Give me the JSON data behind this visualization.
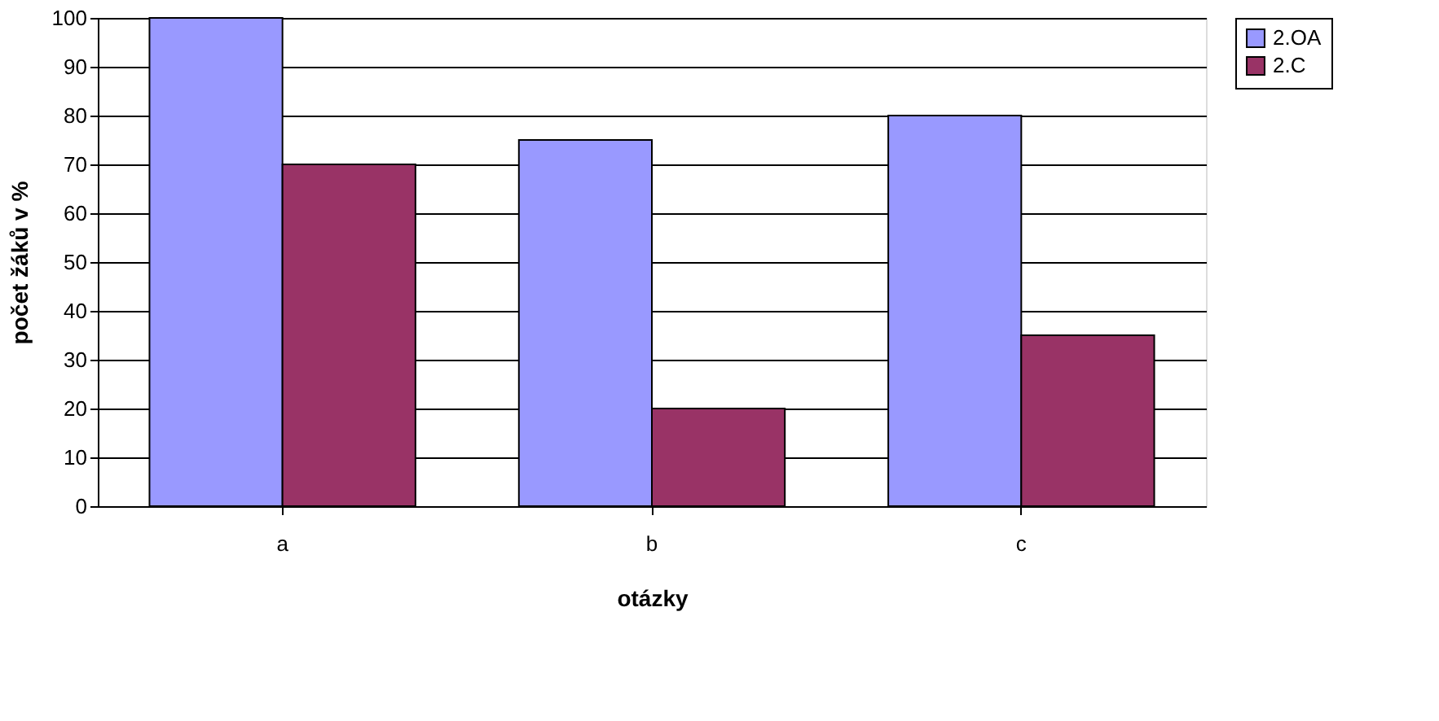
{
  "chart_data": {
    "type": "bar",
    "xlabel": "otázky",
    "ylabel": "počet žáků v %",
    "categories": [
      "a",
      "b",
      "c"
    ],
    "series": [
      {
        "name": "2.OA",
        "color": "#9999ff",
        "values": [
          100,
          75,
          80
        ]
      },
      {
        "name": "2.C",
        "color": "#993366",
        "values": [
          70,
          20,
          35
        ]
      }
    ],
    "ylim": [
      0,
      100
    ],
    "yticks": [
      0,
      10,
      20,
      30,
      40,
      50,
      60,
      70,
      80,
      90,
      100
    ],
    "grid": "y",
    "legend": "right"
  }
}
